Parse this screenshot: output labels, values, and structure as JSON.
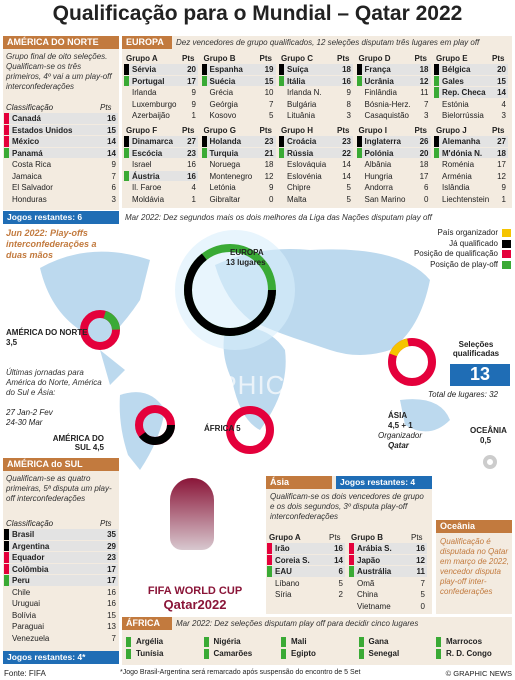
{
  "title": "Qualificação para o Mundial – Qatar 2022",
  "pts": "Pts",
  "north_america": {
    "header": "AMÉRICA DO NORTE",
    "note": "Grupo final de oito seleções. Qualificam-se os três primeiros, 4º vai a um play-off interconfederações",
    "class_label": "Classificação",
    "rows": [
      {
        "team": "Canadá",
        "pts": 16,
        "color": "#e4003b"
      },
      {
        "team": "Estados Unidos",
        "pts": 15,
        "color": "#e4003b"
      },
      {
        "team": "México",
        "pts": 14,
        "color": "#e4003b"
      },
      {
        "team": "Panamá",
        "pts": 14,
        "color": "#3aaa35"
      },
      {
        "team": "Costa Rica",
        "pts": 9
      },
      {
        "team": "Jamaica",
        "pts": 7
      },
      {
        "team": "El Salvador",
        "pts": 6
      },
      {
        "team": "Honduras",
        "pts": 3
      }
    ],
    "remaining": "Jogos restantes: 6"
  },
  "europe": {
    "header": "EUROPA",
    "note": "Dez vencedores de grupo qualificados, 12 seleções disputam três lugares em play off",
    "playoff_note": "Mar 2022: Dez segundos mais os dois melhores da Liga das Nações disputam play off",
    "groups": [
      {
        "name": "Grupo A",
        "rows": [
          {
            "team": "Sérvia",
            "pts": 20,
            "color": "#000"
          },
          {
            "team": "Portugal",
            "pts": 17,
            "color": "#3aaa35"
          },
          {
            "team": "Irlanda",
            "pts": 9
          },
          {
            "team": "Luxemburgo",
            "pts": 9
          },
          {
            "team": "Azerbaijão",
            "pts": 1
          }
        ]
      },
      {
        "name": "Grupo B",
        "rows": [
          {
            "team": "Espanha",
            "pts": 19,
            "color": "#000"
          },
          {
            "team": "Suécia",
            "pts": 15,
            "color": "#3aaa35"
          },
          {
            "team": "Grécia",
            "pts": 10
          },
          {
            "team": "Geórgia",
            "pts": 7
          },
          {
            "team": "Kosovo",
            "pts": 5
          }
        ]
      },
      {
        "name": "Grupo C",
        "rows": [
          {
            "team": "Suíça",
            "pts": 18,
            "color": "#000"
          },
          {
            "team": "Itália",
            "pts": 16,
            "color": "#3aaa35"
          },
          {
            "team": "Irlanda N.",
            "pts": 9
          },
          {
            "team": "Bulgária",
            "pts": 8
          },
          {
            "team": "Lituânia",
            "pts": 3
          }
        ]
      },
      {
        "name": "Grupo D",
        "rows": [
          {
            "team": "França",
            "pts": 18,
            "color": "#000"
          },
          {
            "team": "Ucrânia",
            "pts": 12,
            "color": "#3aaa35"
          },
          {
            "team": "Finlândia",
            "pts": 11
          },
          {
            "team": "Bósnia-Herz.",
            "pts": 7
          },
          {
            "team": "Casaquistão",
            "pts": 3
          }
        ]
      },
      {
        "name": "Grupo E",
        "rows": [
          {
            "team": "Bélgica",
            "pts": 20,
            "color": "#000"
          },
          {
            "team": "Gales",
            "pts": 15,
            "color": "#3aaa35"
          },
          {
            "team": "Rep. Checa",
            "pts": 14,
            "color": "#3aaa35"
          },
          {
            "team": "Estónia",
            "pts": 4
          },
          {
            "team": "Bielorrússia",
            "pts": 3
          }
        ]
      },
      {
        "name": "Grupo F",
        "rows": [
          {
            "team": "Dinamarca",
            "pts": 27,
            "color": "#000"
          },
          {
            "team": "Escócia",
            "pts": 23,
            "color": "#3aaa35"
          },
          {
            "team": "Israel",
            "pts": 16
          },
          {
            "team": "Áustria",
            "pts": 16,
            "color": "#3aaa35"
          },
          {
            "team": "Il. Faroe",
            "pts": 4
          },
          {
            "team": "Moldávia",
            "pts": 1
          }
        ]
      },
      {
        "name": "Grupo G",
        "rows": [
          {
            "team": "Holanda",
            "pts": 23,
            "color": "#000"
          },
          {
            "team": "Turquia",
            "pts": 21,
            "color": "#3aaa35"
          },
          {
            "team": "Noruega",
            "pts": 18
          },
          {
            "team": "Montenegro",
            "pts": 12
          },
          {
            "team": "Letónia",
            "pts": 9
          },
          {
            "team": "Gibraltar",
            "pts": 0
          }
        ]
      },
      {
        "name": "Grupo H",
        "rows": [
          {
            "team": "Croácia",
            "pts": 23,
            "color": "#000"
          },
          {
            "team": "Rússia",
            "pts": 22,
            "color": "#3aaa35"
          },
          {
            "team": "Eslováquia",
            "pts": 14
          },
          {
            "team": "Eslovénia",
            "pts": 14
          },
          {
            "team": "Chipre",
            "pts": 5
          },
          {
            "team": "Malta",
            "pts": 5
          }
        ]
      },
      {
        "name": "Grupo I",
        "rows": [
          {
            "team": "Inglaterra",
            "pts": 26,
            "color": "#000"
          },
          {
            "team": "Polónia",
            "pts": 20,
            "color": "#3aaa35"
          },
          {
            "team": "Albânia",
            "pts": 18
          },
          {
            "team": "Hungria",
            "pts": 17
          },
          {
            "team": "Andorra",
            "pts": 6
          },
          {
            "team": "San Marino",
            "pts": 0
          }
        ]
      },
      {
        "name": "Grupo J",
        "rows": [
          {
            "team": "Alemanha",
            "pts": 27,
            "color": "#000"
          },
          {
            "team": "M'dónia N.",
            "pts": 18,
            "color": "#3aaa35"
          },
          {
            "team": "Roménia",
            "pts": 17
          },
          {
            "team": "Arménia",
            "pts": 12
          },
          {
            "team": "Islândia",
            "pts": 9
          },
          {
            "team": "Liechtenstein",
            "pts": 1
          }
        ]
      }
    ]
  },
  "map": {
    "interconf": "Jun 2022: Play-offs interconfederações a duas mãos",
    "europe": "EUROPA",
    "europe_spots": "13 lugares",
    "north_america": "AMÉRICA DO NORTE",
    "north_america_spots": "3,5",
    "last_rounds": "Últimas jornadas para América do Norte, América do Sul e Ásia:",
    "dates1": "27 Jan-2 Fev",
    "dates2": "24-30 Mar",
    "south_america": "AMÉRICA DO SUL 4,5",
    "africa": "ÁFRICA 5",
    "asia": "ÁSIA",
    "asia_spots": "4,5 + 1",
    "organizer": "Organizador",
    "organizer_name": "Qatar",
    "oceania": "OCEÂNIA",
    "oceania_spots": "0,5",
    "qualified_label": "Seleções qualificadas",
    "qualified": 13,
    "total": "Total de lugares: 32",
    "watermark": "GRAPHIC NEWS"
  },
  "legend": [
    {
      "label": "País organizador",
      "color": "#f5c400"
    },
    {
      "label": "Já qualificado",
      "color": "#000"
    },
    {
      "label": "Posição de qualificação",
      "color": "#e4003b"
    },
    {
      "label": "Posição de play-off",
      "color": "#3aaa35"
    }
  ],
  "south_america": {
    "header": "AMÉRICA do SUL",
    "note": "Qualificam-se as quatro primeiras, 5ª disputa um play-off interconfederações",
    "class_label": "Classificação",
    "rows": [
      {
        "team": "Brasil",
        "pts": 35,
        "color": "#000"
      },
      {
        "team": "Argentina",
        "pts": 29,
        "color": "#000"
      },
      {
        "team": "Equador",
        "pts": 23,
        "color": "#e4003b"
      },
      {
        "team": "Colômbia",
        "pts": 17,
        "color": "#e4003b"
      },
      {
        "team": "Peru",
        "pts": 17,
        "color": "#3aaa35"
      },
      {
        "team": "Chile",
        "pts": 16
      },
      {
        "team": "Uruguai",
        "pts": 16
      },
      {
        "team": "Bolívia",
        "pts": 15
      },
      {
        "team": "Paraguai",
        "pts": 13
      },
      {
        "team": "Venezuela",
        "pts": 7
      }
    ],
    "remaining": "Jogos restantes: 4*"
  },
  "asia": {
    "header": "Ásia",
    "remaining": "Jogos restantes: 4",
    "note": "Qualificam-se os dois vencedores de grupo e os dois segundos, 3º disputa play-off interconfederações",
    "groups": [
      {
        "name": "Grupo A",
        "rows": [
          {
            "team": "Irão",
            "pts": 16,
            "color": "#e4003b"
          },
          {
            "team": "Coreia S.",
            "pts": 14,
            "color": "#e4003b"
          },
          {
            "team": "EAU",
            "pts": 6,
            "color": "#3aaa35"
          },
          {
            "team": "Líbano",
            "pts": 5
          },
          {
            "team": "Síria",
            "pts": 2
          }
        ]
      },
      {
        "name": "Grupo B",
        "rows": [
          {
            "team": "Arábia S.",
            "pts": 16,
            "color": "#e4003b"
          },
          {
            "team": "Japão",
            "pts": 12,
            "color": "#e4003b"
          },
          {
            "team": "Austrália",
            "pts": 11,
            "color": "#3aaa35"
          },
          {
            "team": "Omã",
            "pts": 7
          },
          {
            "team": "China",
            "pts": 5
          },
          {
            "team": "Vietname",
            "pts": 0
          }
        ]
      }
    ]
  },
  "oceania": {
    "header": "Oceânia",
    "note": "Qualificação é disputada no Qatar em março de 2022, vencedor disputa play-off inter-confederações"
  },
  "logo": {
    "line1": "FIFA WORLD CUP",
    "line2": "Qatar2022"
  },
  "africa": {
    "header": "ÁFRICA",
    "note": "Mar 2022: Dez seleções disputam play off para decidir cinco lugares",
    "pairs": [
      [
        "Argélia",
        "Tunísia"
      ],
      [
        "Nigéria",
        "Camarões"
      ],
      [
        "Mali",
        "Egipto"
      ],
      [
        "Gana",
        "Senegal"
      ],
      [
        "Marrocos",
        "R. D. Congo"
      ]
    ]
  },
  "footer": {
    "source": "Fonte: FIFA",
    "footnote": "*Jogo Brasil-Argentina será remarcado após suspensão do encontro de 5 Set",
    "credit": "© GRAPHIC NEWS"
  }
}
